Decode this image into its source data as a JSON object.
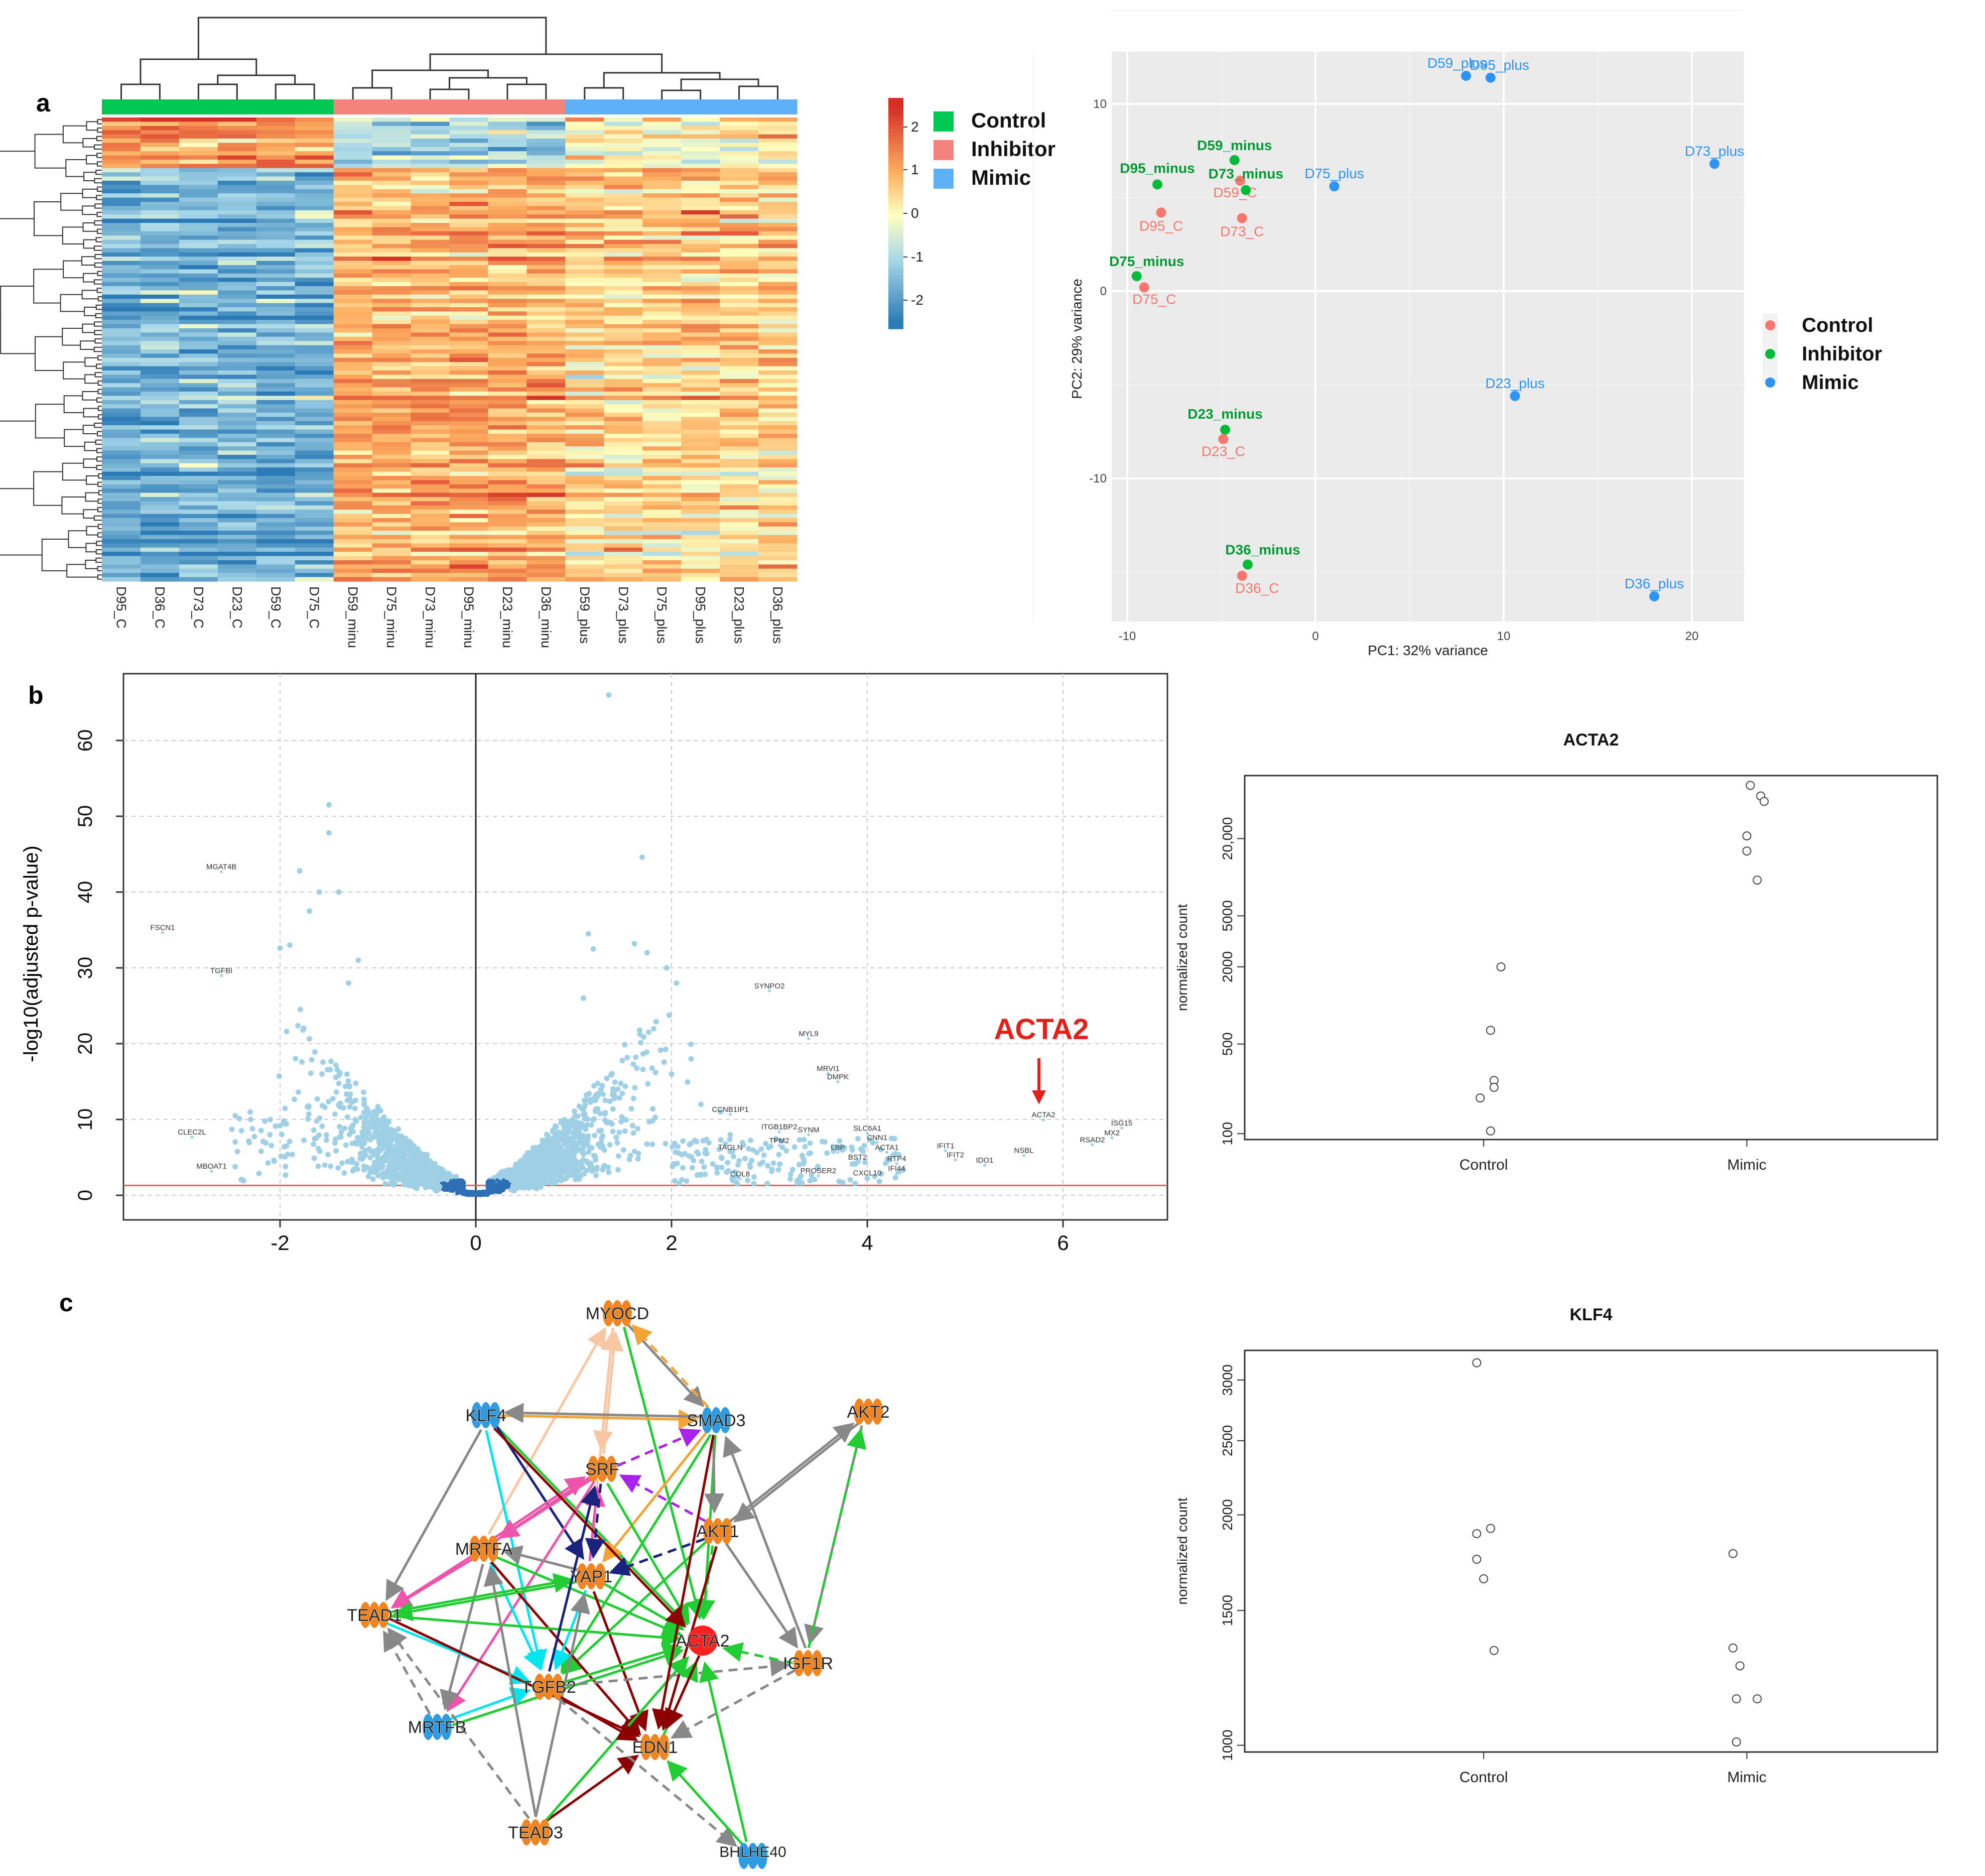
{
  "panel_labels": {
    "a": "a",
    "b": "b",
    "c": "c"
  },
  "heatmap": {
    "samples": [
      "D95_C",
      "D36_C",
      "D73_C",
      "D23_C",
      "D59_C",
      "D75_C",
      "D59_minu",
      "D75_minu",
      "D73_minu",
      "D95_minu",
      "D23_minu",
      "D36_minu",
      "D59_plus",
      "D73_plus",
      "D75_plus",
      "D95_plus",
      "D23_plus",
      "D36_plus"
    ],
    "groups": [
      "Control",
      "Control",
      "Control",
      "Control",
      "Control",
      "Control",
      "Inhibitor",
      "Inhibitor",
      "Inhibitor",
      "Inhibitor",
      "Inhibitor",
      "Inhibitor",
      "Mimic",
      "Mimic",
      "Mimic",
      "Mimic",
      "Mimic",
      "Mimic"
    ],
    "color_scale_ticks": [
      "2",
      "1",
      "0",
      "-1",
      "-2"
    ],
    "legend": [
      {
        "label": "Control",
        "color": "#00c853"
      },
      {
        "label": "Inhibitor",
        "color": "#f4837d"
      },
      {
        "label": "Mimic",
        "color": "#5fb1f7"
      }
    ]
  },
  "pca": {
    "xlabel": "PC1: 32% variance",
    "ylabel": "PC2: 29% variance",
    "xticks": [
      "-10",
      "0",
      "10",
      "20"
    ],
    "yticks": [
      "10",
      "0",
      "-10"
    ],
    "legend": [
      {
        "label": "Control",
        "color": "#f8766d"
      },
      {
        "label": "Inhibitor",
        "color": "#00ba38"
      },
      {
        "label": "Mimic",
        "color": "#2d93f5"
      }
    ],
    "points": [
      {
        "label": "D59_minus",
        "x": -4.3,
        "y": 7.0,
        "group": "Inhibitor"
      },
      {
        "label": "D59_C",
        "x": -4.0,
        "y": 5.9,
        "group": "Control"
      },
      {
        "label": "D95_minus",
        "x": -8.4,
        "y": 5.7,
        "group": "Inhibitor"
      },
      {
        "label": "D73_minus",
        "x": -3.7,
        "y": 5.4,
        "group": "Inhibitor"
      },
      {
        "label": "D95_C",
        "x": -8.2,
        "y": 4.2,
        "group": "Control"
      },
      {
        "label": "D73_C",
        "x": -3.9,
        "y": 3.9,
        "group": "Control"
      },
      {
        "label": "D75_minus",
        "x": -9.5,
        "y": 0.8,
        "group": "Inhibitor"
      },
      {
        "label": "D75_C",
        "x": -9.1,
        "y": 0.2,
        "group": "Control"
      },
      {
        "label": "D23_minus",
        "x": -4.8,
        "y": -7.4,
        "group": "Inhibitor"
      },
      {
        "label": "D23_C",
        "x": -4.9,
        "y": -7.9,
        "group": "Control"
      },
      {
        "label": "D36_minus",
        "x": -3.6,
        "y": -14.6,
        "group": "Inhibitor"
      },
      {
        "label": "D36_C",
        "x": -3.9,
        "y": -15.2,
        "group": "Control"
      },
      {
        "label": "D59_plus",
        "x": 8.0,
        "y": 11.5,
        "group": "Mimic"
      },
      {
        "label": "D95_plus",
        "x": 9.3,
        "y": 11.4,
        "group": "Mimic"
      },
      {
        "label": "D73_plus",
        "x": 21.2,
        "y": 6.8,
        "group": "Mimic"
      },
      {
        "label": "D75_plus",
        "x": 1.0,
        "y": 5.6,
        "group": "Mimic"
      },
      {
        "label": "D23_plus",
        "x": 10.6,
        "y": -5.6,
        "group": "Mimic"
      },
      {
        "label": "D36_plus",
        "x": 18.0,
        "y": -16.3,
        "group": "Mimic"
      }
    ]
  },
  "chart_data": [
    {
      "type": "scatter",
      "name": "volcano",
      "ylabel": "-log10(adjusted p-value)",
      "xlabel": "",
      "xlim": [
        -3.6,
        7.1
      ],
      "ylim": [
        -2.5,
        69
      ],
      "xticks": [
        "-2",
        "0",
        "2",
        "4",
        "6"
      ],
      "yticks": [
        "0",
        "10",
        "20",
        "30",
        "40",
        "50",
        "60"
      ],
      "threshold_y": 1.3,
      "highlight": "ACTA2",
      "labeled_genes": [
        {
          "gene": "MGAT4B",
          "x": -2.6,
          "y": 43
        },
        {
          "gene": "FSCN1",
          "x": -3.2,
          "y": 35
        },
        {
          "gene": "TGFBI",
          "x": -2.6,
          "y": 29.3
        },
        {
          "gene": "CLEC2L",
          "x": -2.9,
          "y": 8
        },
        {
          "gene": "MBOAT1",
          "x": -2.7,
          "y": 3.5
        },
        {
          "gene": "SYNPO2",
          "x": 3.0,
          "y": 27.3
        },
        {
          "gene": "MYL9",
          "x": 3.4,
          "y": 21
        },
        {
          "gene": "MRVI1",
          "x": 3.6,
          "y": 16.4
        },
        {
          "gene": "DMPK",
          "x": 3.7,
          "y": 15.3
        },
        {
          "gene": "CCNB1IP1",
          "x": 2.6,
          "y": 11
        },
        {
          "gene": "ITGB1BP2",
          "x": 3.1,
          "y": 8.7
        },
        {
          "gene": "SYNM",
          "x": 3.4,
          "y": 8.3
        },
        {
          "gene": "SLC6A1",
          "x": 4.0,
          "y": 8.5
        },
        {
          "gene": "CNN1",
          "x": 4.1,
          "y": 7.3
        },
        {
          "gene": "ACTA1",
          "x": 4.2,
          "y": 6.0
        },
        {
          "gene": "LBP",
          "x": 3.7,
          "y": 6.0
        },
        {
          "gene": "BST2",
          "x": 3.9,
          "y": 4.7
        },
        {
          "gene": "RTP4",
          "x": 4.3,
          "y": 4.5
        },
        {
          "gene": "IFIT1",
          "x": 4.8,
          "y": 6.2
        },
        {
          "gene": "IFIT2",
          "x": 4.9,
          "y": 5.0
        },
        {
          "gene": "IDO1",
          "x": 5.2,
          "y": 4.3
        },
        {
          "gene": "NSBL",
          "x": 5.6,
          "y": 5.6
        },
        {
          "gene": "IFI44",
          "x": 4.3,
          "y": 3.2
        },
        {
          "gene": "CXCL10",
          "x": 4.0,
          "y": 2.6
        },
        {
          "gene": "PROSER2",
          "x": 3.5,
          "y": 2.9
        },
        {
          "gene": "TAGLN",
          "x": 2.6,
          "y": 6.0
        },
        {
          "gene": "TPM2",
          "x": 3.1,
          "y": 6.9
        },
        {
          "gene": "COL8",
          "x": 2.7,
          "y": 2.5
        },
        {
          "gene": "ACTA2",
          "x": 5.8,
          "y": 10.3
        },
        {
          "gene": "RSAD2",
          "x": 6.3,
          "y": 7.0
        },
        {
          "gene": "MX2",
          "x": 6.5,
          "y": 7.9
        },
        {
          "gene": "ISG15",
          "x": 6.6,
          "y": 9.2
        }
      ]
    },
    {
      "type": "scatter",
      "name": "ACTA2 counts",
      "title": "ACTA2",
      "ylabel": "normalized count",
      "categories": [
        "Control",
        "Mimic"
      ],
      "log_scale": true,
      "yticks": [
        {
          "label": "100",
          "value": 100
        },
        {
          "label": "500",
          "value": 500
        },
        {
          "label": "2000",
          "value": 2000
        },
        {
          "label": "5000",
          "value": 5000
        },
        {
          "label": "20,000",
          "value": 20000
        }
      ],
      "ylim": [
        90,
        62000
      ],
      "series": [
        {
          "name": "Control",
          "values": [
            2000,
            640,
            260,
            230,
            190,
            105
          ],
          "jitter": [
            0.05,
            0.02,
            0.03,
            0.03,
            -0.01,
            0.02
          ]
        },
        {
          "name": "Mimic",
          "values": [
            52000,
            43000,
            39000,
            21000,
            16000,
            9500
          ],
          "jitter": [
            0.01,
            0.04,
            0.05,
            0.0,
            0.0,
            0.03
          ]
        }
      ]
    },
    {
      "type": "scatter",
      "name": "KLF4 counts",
      "title": "KLF4",
      "ylabel": "normalized count",
      "categories": [
        "Control",
        "Mimic"
      ],
      "log_scale": true,
      "yticks": [
        {
          "label": "1000",
          "value": 1000
        },
        {
          "label": "1500",
          "value": 1500
        },
        {
          "label": "2000",
          "value": 2000
        },
        {
          "label": "2500",
          "value": 2500
        },
        {
          "label": "3000",
          "value": 3000
        }
      ],
      "ylim": [
        980,
        3280
      ],
      "series": [
        {
          "name": "Control",
          "values": [
            3160,
            1920,
            1890,
            1750,
            1650,
            1330
          ],
          "jitter": [
            -0.02,
            0.02,
            -0.02,
            -0.02,
            0.0,
            0.03
          ]
        },
        {
          "name": "Mimic",
          "values": [
            1780,
            1340,
            1270,
            1150,
            1150,
            1010
          ],
          "jitter": [
            -0.04,
            -0.04,
            -0.02,
            -0.03,
            0.03,
            -0.03
          ]
        }
      ]
    }
  ],
  "network": {
    "nodes": [
      {
        "id": "MYOCD",
        "color": "#f08522"
      },
      {
        "id": "KLF4",
        "color": "#2f9be0"
      },
      {
        "id": "SMAD3",
        "color": "#2f9be0"
      },
      {
        "id": "AKT2",
        "color": "#f08522"
      },
      {
        "id": "SRF",
        "color": "#f08522"
      },
      {
        "id": "AKT1",
        "color": "#f08522"
      },
      {
        "id": "MRTFA",
        "color": "#f08522"
      },
      {
        "id": "YAP1",
        "color": "#f08522"
      },
      {
        "id": "TEAD1",
        "color": "#f08522"
      },
      {
        "id": "ACTA2",
        "color": "#ff2020"
      },
      {
        "id": "IGF1R",
        "color": "#f08522"
      },
      {
        "id": "TGFB2",
        "color": "#f08522"
      },
      {
        "id": "MRTFB",
        "color": "#2f9be0"
      },
      {
        "id": "EDN1",
        "color": "#f08522"
      },
      {
        "id": "TEAD3",
        "color": "#f08522"
      },
      {
        "id": "BHLHE40",
        "color": "#2f9be0"
      }
    ],
    "edges": [
      [
        "MRTFA",
        "MYOCD",
        "#f9c6a4",
        false
      ],
      [
        "SRF",
        "MYOCD",
        "#f9c6a4",
        false
      ],
      [
        "MYOCD",
        "SRF",
        "#f9c6a4",
        false
      ],
      [
        "YAP1",
        "MYOCD",
        "#f9c6a4",
        false
      ],
      [
        "MYOCD",
        "SMAD3",
        "#888888",
        false
      ],
      [
        "SMAD3",
        "MYOCD",
        "#f4a434",
        true
      ],
      [
        "MYOCD",
        "ACTA2",
        "#22cc33",
        false
      ],
      [
        "KLF4",
        "SMAD3",
        "#f4a434",
        false
      ],
      [
        "SMAD3",
        "KLF4",
        "#888888",
        false
      ],
      [
        "KLF4",
        "TEAD1",
        "#888888",
        false
      ],
      [
        "KLF4",
        "ACTA2",
        "#22cc33",
        false
      ],
      [
        "KLF4",
        "TGFB2",
        "#00e5ee",
        false
      ],
      [
        "KLF4",
        "YAP1",
        "#1a237e",
        false
      ],
      [
        "SMAD3",
        "ACTA2",
        "#22cc33",
        false
      ],
      [
        "SMAD3",
        "AKT1",
        "#888888",
        false
      ],
      [
        "SMAD3",
        "TGFB2",
        "#22cc33",
        false
      ],
      [
        "SMAD3",
        "YAP1",
        "#f4a434",
        false
      ],
      [
        "AKT1",
        "SRF",
        "#aa22ee",
        true
      ],
      [
        "AKT2",
        "AKT1",
        "#888888",
        false
      ],
      [
        "AKT1",
        "AKT2",
        "#888888",
        false
      ],
      [
        "AKT2",
        "IGF1R",
        "#888888",
        true
      ],
      [
        "IGF1R",
        "AKT2",
        "#22cc33",
        true
      ],
      [
        "AKT1",
        "IGF1R",
        "#888888",
        false
      ],
      [
        "AKT1",
        "ACTA2",
        "#22cc33",
        true
      ],
      [
        "AKT1",
        "EDN1",
        "#8b0000",
        false
      ],
      [
        "AKT1",
        "TGFB2",
        "#22cc33",
        false
      ],
      [
        "SRF",
        "ACTA2",
        "#22cc33",
        false
      ],
      [
        "SRF",
        "TEAD1",
        "#ee55aa",
        false
      ],
      [
        "SRF",
        "MRTFB",
        "#ee55aa",
        false
      ],
      [
        "SRF",
        "SMAD3",
        "#aa22ee",
        true
      ],
      [
        "MRTFA",
        "SRF",
        "#ee55aa",
        false
      ],
      [
        "SRF",
        "MRTFA",
        "#ee55aa",
        false
      ],
      [
        "MRTFA",
        "ACTA2",
        "#22cc33",
        false
      ],
      [
        "MRTFA",
        "TEAD1",
        "#ee55aa",
        false
      ],
      [
        "MRTFA",
        "TGFB2",
        "#00e5ee",
        false
      ],
      [
        "MRTFA",
        "EDN1",
        "#8b0000",
        false
      ],
      [
        "MRTFA",
        "MRTFB",
        "#888888",
        false
      ],
      [
        "YAP1",
        "ACTA2",
        "#22cc33",
        false
      ],
      [
        "YAP1",
        "MRTFA",
        "#888888",
        false
      ],
      [
        "YAP1",
        "SRF",
        "#ee55aa",
        false
      ],
      [
        "YAP1",
        "TGFB2",
        "#00e5ee",
        false
      ],
      [
        "YAP1",
        "EDN1",
        "#8b0000",
        false
      ],
      [
        "YAP1",
        "TEAD1",
        "#22cc33",
        false
      ],
      [
        "TEAD1",
        "ACTA2",
        "#22cc33",
        false
      ],
      [
        "TEAD1",
        "TGFB2",
        "#00e5ee",
        false
      ],
      [
        "TEAD1",
        "EDN1",
        "#8b0000",
        false
      ],
      [
        "TEAD1",
        "YAP1",
        "#22cc33",
        false
      ],
      [
        "MRTFB",
        "ACTA2",
        "#22cc33",
        false
      ],
      [
        "MRTFB",
        "TGFB2",
        "#00e5ee",
        false
      ],
      [
        "MRTFB",
        "TEAD1",
        "#888888",
        true
      ],
      [
        "TEAD3",
        "TEAD1",
        "#888888",
        true
      ],
      [
        "TEAD3",
        "EDN1",
        "#8b0000",
        false
      ],
      [
        "TEAD3",
        "ACTA2",
        "#22cc33",
        false
      ],
      [
        "TEAD3",
        "MRTFA",
        "#888888",
        false
      ],
      [
        "TEAD3",
        "YAP1",
        "#888888",
        false
      ],
      [
        "TGFB2",
        "ACTA2",
        "#22cc33",
        false
      ],
      [
        "TGFB2",
        "EDN1",
        "#8b0000",
        false
      ],
      [
        "TGFB2",
        "SRF",
        "#1a237e",
        false
      ],
      [
        "TGFB2",
        "IGF1R",
        "#888888",
        true
      ],
      [
        "TGFB2",
        "BHLHE40",
        "#888888",
        true
      ],
      [
        "IGF1R",
        "ACTA2",
        "#22cc33",
        true
      ],
      [
        "IGF1R",
        "EDN1",
        "#888888",
        true
      ],
      [
        "IGF1R",
        "SMAD3",
        "#888888",
        false
      ],
      [
        "BHLHE40",
        "ACTA2",
        "#22cc33",
        false
      ],
      [
        "BHLHE40",
        "EDN1",
        "#22cc33",
        false
      ],
      [
        "EDN1",
        "ACTA2",
        "#22cc33",
        true
      ],
      [
        "ACTA2",
        "EDN1",
        "#8b0000",
        false
      ],
      [
        "SMAD3",
        "EDN1",
        "#8b0000",
        false
      ],
      [
        "KLF4",
        "ACTA2",
        "#8b0000",
        false
      ],
      [
        "AKT1",
        "YAP1",
        "#1a237e",
        true
      ],
      [
        "SRF",
        "YAP1",
        "#1a237e",
        true
      ]
    ]
  }
}
